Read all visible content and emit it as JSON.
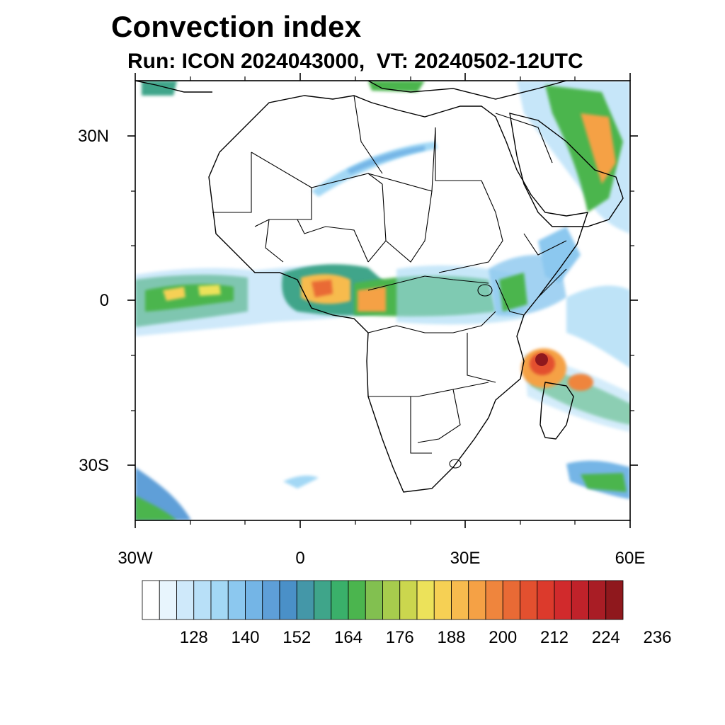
{
  "title": "Convection index",
  "subtitle": "Run: ICON 2024043000,  VT: 20240502-12UTC",
  "map": {
    "extent": {
      "lon": [
        -30,
        60
      ],
      "lat": [
        -40,
        40
      ]
    },
    "lat_labels": [
      "30N",
      "0",
      "30S"
    ],
    "lon_labels": [
      "30W",
      "0",
      "30E",
      "60E"
    ]
  },
  "colorbar": {
    "levels": [
      128,
      140,
      152,
      164,
      176,
      188,
      200,
      212,
      224,
      236
    ],
    "colors": [
      "#ffffff",
      "#e8f5fd",
      "#cfe9fa",
      "#b8e0f8",
      "#a3d8f5",
      "#8cc8ef",
      "#74b5e6",
      "#5e9fd8",
      "#4a90c8",
      "#4497a8",
      "#3fa58a",
      "#3ab06a",
      "#4bb54e",
      "#82c050",
      "#a7cc4d",
      "#cbd64e",
      "#ece25a",
      "#f6d054",
      "#f7bb4e",
      "#f5a145",
      "#ef853d",
      "#e96a35",
      "#e3502f",
      "#dc3a2c",
      "#d12a2c",
      "#c0222a",
      "#a91d25",
      "#8f181d"
    ]
  }
}
